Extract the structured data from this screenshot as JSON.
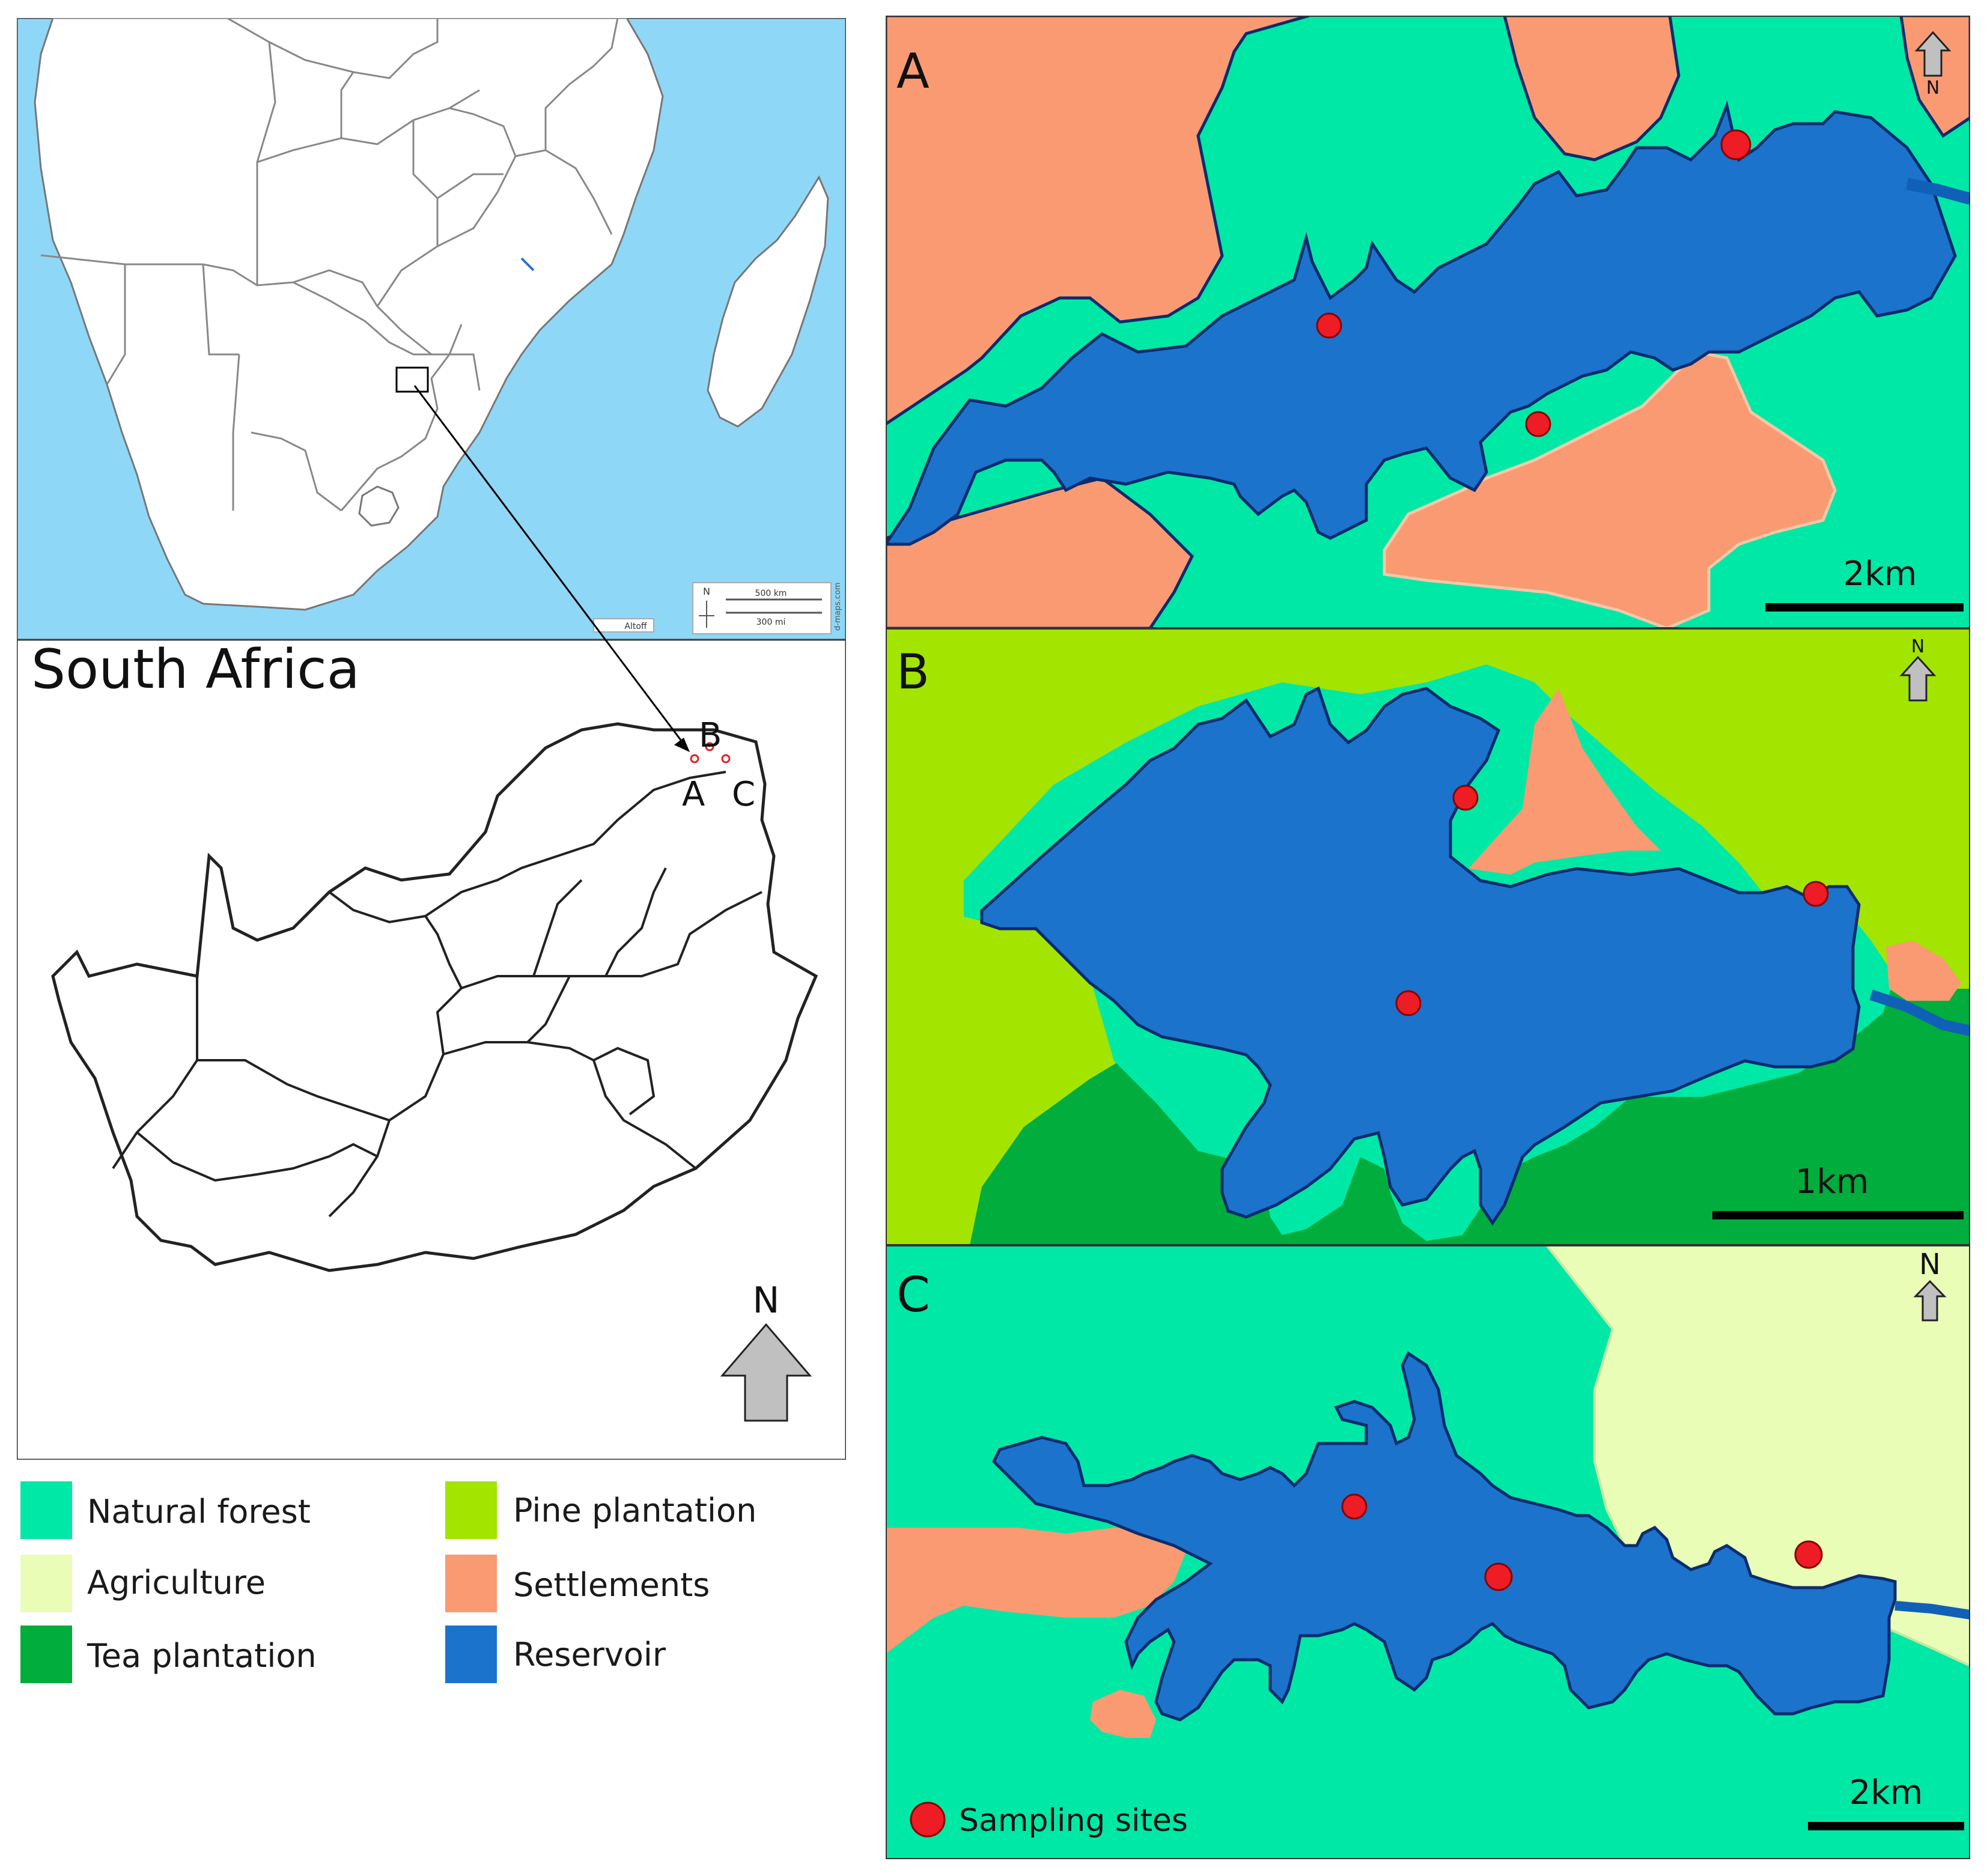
{
  "inset_map": {
    "credit": "d-maps.com",
    "scale_km": "500 km",
    "scale_mi": "300 mi",
    "scale_north": "N",
    "attribution": "Altoff"
  },
  "south_africa": {
    "title": "South Africa",
    "site_labels": [
      "A",
      "B",
      "C"
    ],
    "north": "N"
  },
  "panels": [
    {
      "id": "A",
      "label": "A",
      "scale": "2km",
      "north": "N"
    },
    {
      "id": "B",
      "label": "B",
      "scale": "1km",
      "north": "N"
    },
    {
      "id": "C",
      "label": "C",
      "scale": "2km",
      "north": "N"
    }
  ],
  "sampling_legend": "Sampling sites",
  "legend": [
    {
      "label": "Natural forest",
      "color": "#00e8a6"
    },
    {
      "label": "Pine plantation",
      "color": "#a3e400"
    },
    {
      "label": "Agriculture",
      "color": "#e9fdb6"
    },
    {
      "label": "Settlements",
      "color": "#f99a72"
    },
    {
      "label": "Tea plantation",
      "color": "#00ad3d"
    },
    {
      "label": "Reservoir",
      "color": "#1b73cc"
    }
  ],
  "colors": {
    "ocean": "#8fd7f7",
    "land": "#ffffff",
    "reservoir_outline": "#0d2c6e",
    "river": "#1160b8",
    "site_marker": "#ee1c24"
  }
}
